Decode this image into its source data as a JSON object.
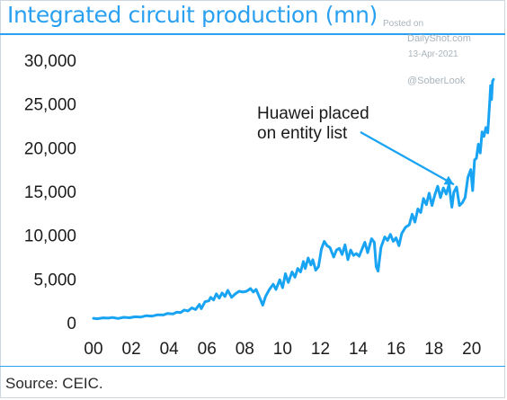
{
  "watermark": {
    "posted": "Posted on",
    "site": "DailyShot.com",
    "date": "13-Apr-2021",
    "handle": "@SoberLook"
  },
  "source": "Source: CEIC.",
  "colors": {
    "accent": "#2aa0f0",
    "line": "#19a4f3",
    "arrow": "#19a4f3"
  },
  "chart_data": {
    "type": "line",
    "title": "Integrated circuit production (mn)",
    "xlabel": "",
    "ylabel": "",
    "xlim": [
      2000,
      2021.2
    ],
    "ylim": [
      0,
      30000
    ],
    "x_tick_values": [
      2000,
      2002,
      2004,
      2006,
      2008,
      2010,
      2012,
      2014,
      2016,
      2018,
      2020
    ],
    "x_tick_labels": [
      "00",
      "02",
      "04",
      "06",
      "08",
      "10",
      "12",
      "14",
      "16",
      "18",
      "20"
    ],
    "y_tick_values": [
      0,
      5000,
      10000,
      15000,
      20000,
      25000,
      30000
    ],
    "y_tick_labels": [
      "0",
      "5,000",
      "10,000",
      "15,000",
      "20,000",
      "25,000",
      "30,000"
    ],
    "grid": false,
    "annotations": [
      {
        "text_lines": [
          "Huawei placed",
          "on entity list"
        ],
        "x": 2019.2,
        "y": 16000
      }
    ],
    "series": [
      {
        "points": [
          [
            2000.0,
            500
          ],
          [
            2000.2,
            450
          ],
          [
            2000.5,
            550
          ],
          [
            2000.8,
            520
          ],
          [
            2001.0,
            600
          ],
          [
            2001.3,
            480
          ],
          [
            2001.6,
            620
          ],
          [
            2001.9,
            560
          ],
          [
            2002.2,
            680
          ],
          [
            2002.5,
            650
          ],
          [
            2002.8,
            800
          ],
          [
            2003.1,
            750
          ],
          [
            2003.4,
            900
          ],
          [
            2003.7,
            880
          ],
          [
            2003.9,
            1050
          ],
          [
            2004.2,
            1000
          ],
          [
            2004.4,
            1200
          ],
          [
            2004.6,
            1150
          ],
          [
            2004.8,
            1450
          ],
          [
            2005.0,
            1350
          ],
          [
            2005.2,
            1700
          ],
          [
            2005.4,
            1500
          ],
          [
            2005.6,
            2100
          ],
          [
            2005.7,
            1600
          ],
          [
            2005.9,
            2400
          ],
          [
            2006.1,
            2500
          ],
          [
            2006.2,
            2900
          ],
          [
            2006.35,
            2600
          ],
          [
            2006.5,
            3300
          ],
          [
            2006.65,
            2800
          ],
          [
            2006.8,
            3400
          ],
          [
            2006.95,
            3000
          ],
          [
            2007.1,
            3700
          ],
          [
            2007.3,
            2900
          ],
          [
            2007.5,
            3300
          ],
          [
            2007.7,
            3600
          ],
          [
            2007.9,
            3500
          ],
          [
            2008.1,
            3600
          ],
          [
            2008.3,
            3900
          ],
          [
            2008.45,
            3500
          ],
          [
            2008.6,
            3800
          ],
          [
            2008.8,
            2800
          ],
          [
            2008.95,
            2000
          ],
          [
            2009.1,
            3000
          ],
          [
            2009.3,
            3800
          ],
          [
            2009.5,
            4400
          ],
          [
            2009.65,
            3800
          ],
          [
            2009.85,
            4900
          ],
          [
            2010.0,
            4000
          ],
          [
            2010.15,
            5600
          ],
          [
            2010.3,
            4600
          ],
          [
            2010.5,
            5800
          ],
          [
            2010.65,
            5200
          ],
          [
            2010.8,
            6200
          ],
          [
            2010.95,
            5800
          ],
          [
            2011.1,
            7000
          ],
          [
            2011.2,
            6200
          ],
          [
            2011.35,
            7400
          ],
          [
            2011.5,
            6600
          ],
          [
            2011.6,
            7200
          ],
          [
            2011.75,
            6000
          ],
          [
            2011.9,
            6400
          ],
          [
            2012.05,
            8400
          ],
          [
            2012.2,
            9300
          ],
          [
            2012.35,
            8800
          ],
          [
            2012.5,
            8600
          ],
          [
            2012.7,
            7500
          ],
          [
            2012.85,
            8300
          ],
          [
            2013.0,
            8500
          ],
          [
            2013.15,
            7800
          ],
          [
            2013.3,
            8900
          ],
          [
            2013.45,
            7200
          ],
          [
            2013.6,
            8300
          ],
          [
            2013.75,
            7700
          ],
          [
            2013.9,
            7900
          ],
          [
            2014.05,
            7600
          ],
          [
            2014.2,
            8400
          ],
          [
            2014.35,
            9200
          ],
          [
            2014.5,
            8000
          ],
          [
            2014.7,
            9600
          ],
          [
            2014.85,
            9200
          ],
          [
            2014.95,
            6400
          ],
          [
            2015.05,
            5900
          ],
          [
            2015.2,
            8600
          ],
          [
            2015.4,
            9800
          ],
          [
            2015.55,
            9400
          ],
          [
            2015.7,
            10100
          ],
          [
            2015.85,
            9300
          ],
          [
            2016.0,
            9700
          ],
          [
            2016.15,
            8800
          ],
          [
            2016.3,
            10200
          ],
          [
            2016.5,
            10900
          ],
          [
            2016.7,
            11200
          ],
          [
            2016.85,
            12400
          ],
          [
            2017.0,
            11500
          ],
          [
            2017.15,
            13000
          ],
          [
            2017.3,
            12600
          ],
          [
            2017.45,
            14200
          ],
          [
            2017.6,
            13500
          ],
          [
            2017.75,
            14800
          ],
          [
            2017.9,
            13400
          ],
          [
            2018.05,
            14600
          ],
          [
            2018.2,
            15600
          ],
          [
            2018.35,
            14300
          ],
          [
            2018.5,
            15400
          ],
          [
            2018.65,
            14700
          ],
          [
            2018.8,
            15800
          ],
          [
            2018.95,
            13200
          ],
          [
            2019.05,
            14900
          ],
          [
            2019.2,
            15500
          ],
          [
            2019.35,
            13400
          ],
          [
            2019.5,
            13700
          ],
          [
            2019.65,
            14300
          ],
          [
            2019.8,
            16600
          ],
          [
            2019.95,
            17500
          ],
          [
            2020.05,
            15100
          ],
          [
            2020.15,
            18600
          ],
          [
            2020.25,
            18800
          ],
          [
            2020.35,
            20400
          ],
          [
            2020.45,
            19400
          ],
          [
            2020.55,
            21800
          ],
          [
            2020.65,
            21300
          ],
          [
            2020.75,
            22300
          ],
          [
            2020.85,
            21700
          ],
          [
            2020.95,
            25100
          ],
          [
            2021.0,
            27100
          ],
          [
            2021.05,
            25500
          ],
          [
            2021.1,
            27600
          ],
          [
            2021.15,
            27800
          ]
        ]
      }
    ]
  }
}
